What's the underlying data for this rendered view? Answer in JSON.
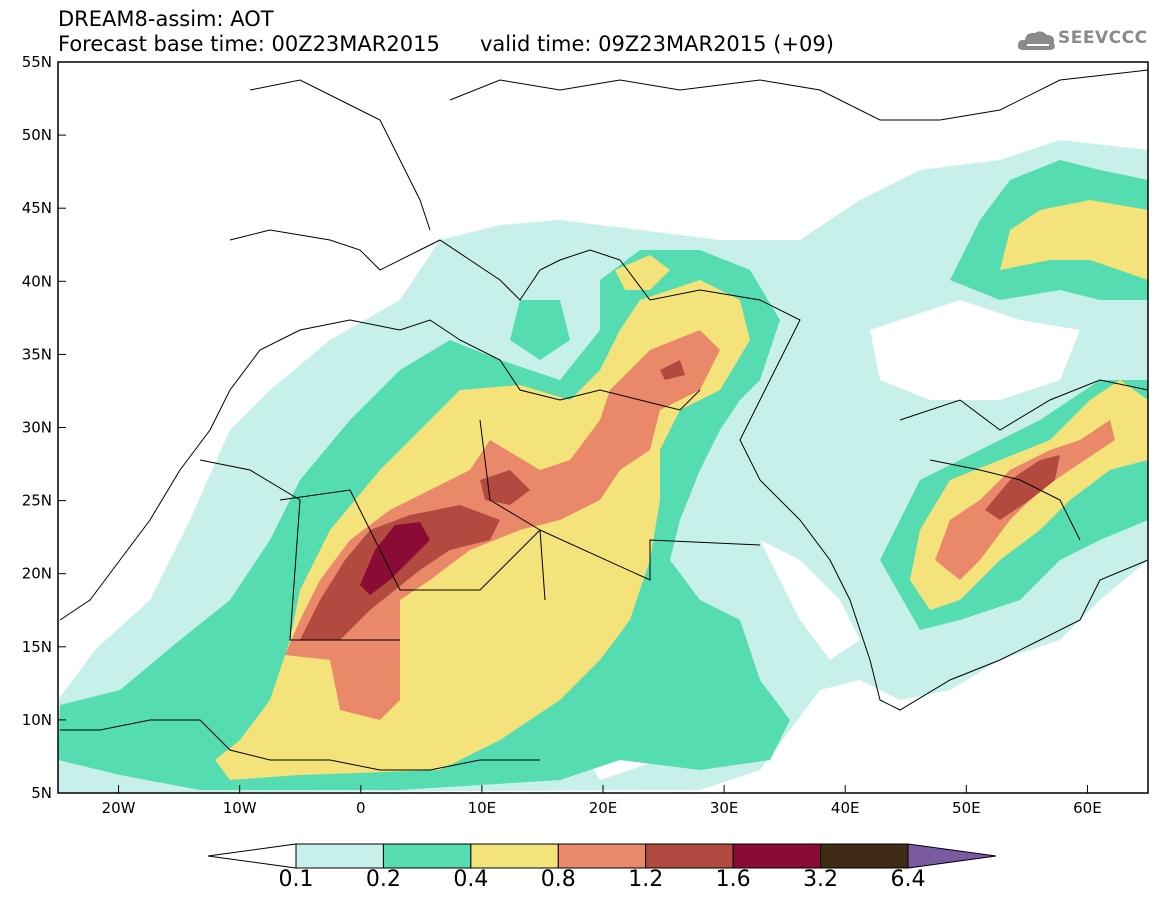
{
  "header": {
    "line1": "DREAM8-assim: AOT",
    "line2": "Forecast base time: 00Z23MAR2015",
    "line3": "valid time: 09Z23MAR2015 (+09)"
  },
  "logo": {
    "text": "SEEVCCC",
    "icon": "cloud-icon"
  },
  "map": {
    "lat_labels": [
      "55N",
      "50N",
      "45N",
      "40N",
      "35N",
      "30N",
      "25N",
      "20N",
      "15N",
      "10N",
      "5N"
    ],
    "lon_labels": [
      "20W",
      "10W",
      "0",
      "10E",
      "20E",
      "30E",
      "40E",
      "50E",
      "60E"
    ]
  },
  "colorbar": {
    "levels": [
      "0.1",
      "0.2",
      "0.4",
      "0.8",
      "1.2",
      "1.6",
      "3.2",
      "6.4"
    ],
    "colors": [
      "#ffffff",
      "#c8f0ea",
      "#55dcb0",
      "#f4e27a",
      "#e9896a",
      "#b24a3f",
      "#8a0b34",
      "#3f2a15",
      "#7a5aa0"
    ]
  },
  "legend_colors": {
    "c01": "#c8f0ea",
    "c02": "#55dcb0",
    "c04": "#f4e27a",
    "c08": "#e9896a",
    "c12": "#b24a3f",
    "c16": "#8a0b34"
  }
}
